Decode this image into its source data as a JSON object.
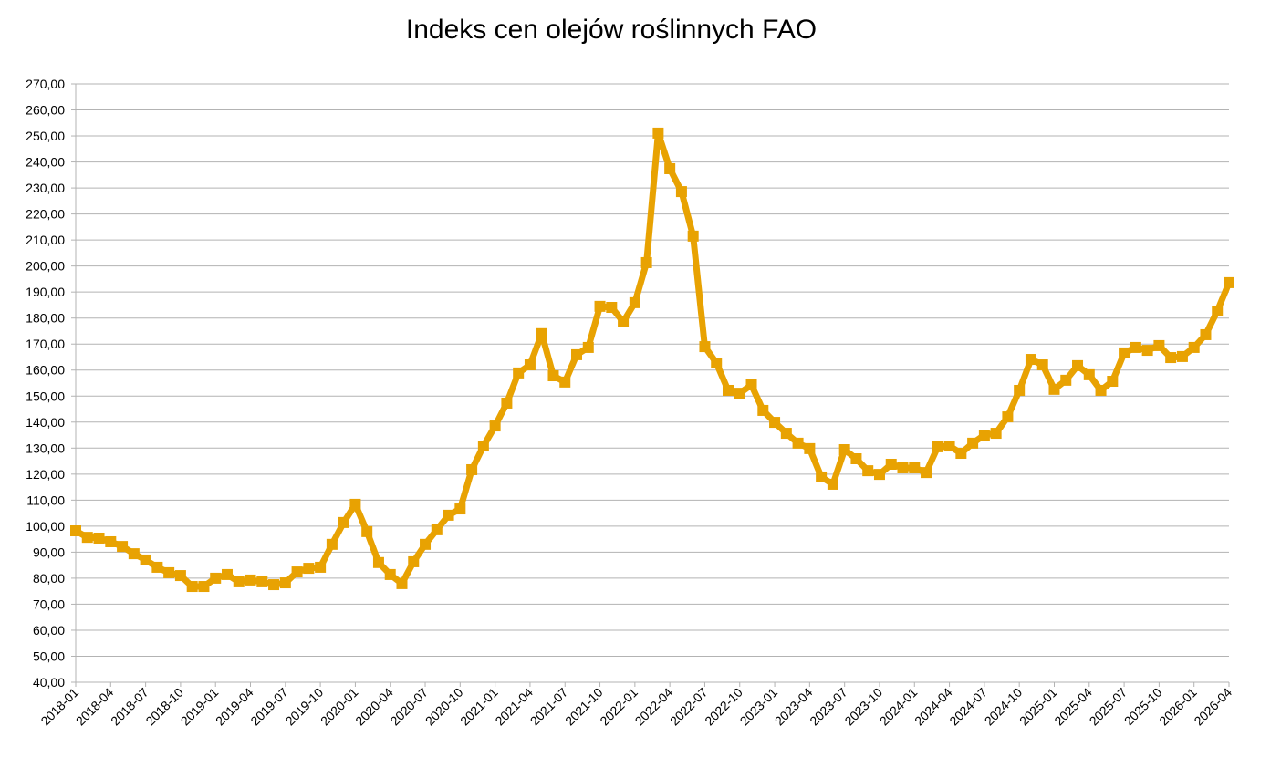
{
  "chart_data": {
    "type": "line",
    "title": "Indeks cen olejów roślinnych FAO",
    "categories": [
      "2018-01",
      null,
      null,
      "2018-04",
      null,
      null,
      "2018-07",
      null,
      null,
      "2018-10",
      null,
      null,
      "2019-01",
      null,
      null,
      "2019-04",
      null,
      null,
      "2019-07",
      null,
      null,
      "2019-10",
      null,
      null,
      "2020-01",
      null,
      null,
      "2020-04",
      null,
      null,
      "2020-07",
      null,
      null,
      "2020-10",
      null,
      null,
      "2021-01",
      null,
      null,
      "2021-04",
      null,
      null,
      "2021-07",
      null,
      null,
      "2021-10",
      null,
      null,
      "2022-01",
      null,
      null,
      "2022-04",
      null,
      null,
      "2022-07",
      null,
      null,
      "2022-10",
      null,
      null,
      "2023-01",
      null,
      null,
      "2023-04",
      null,
      null,
      "2023-07",
      null,
      null,
      "2023-10",
      null,
      null,
      "2024-01",
      null,
      null,
      "2024-04",
      null,
      null,
      "2024-07",
      null,
      null,
      "2024-10",
      null,
      null,
      "2025-01",
      null,
      null,
      "2025-04",
      null,
      null,
      "2025-07",
      null,
      null,
      "2025-10",
      null,
      null,
      "2026-01",
      null,
      null,
      "2026-04"
    ],
    "series": [
      {
        "color": "#e8a202",
        "values": [
          98.2,
          95.7,
          95.4,
          94,
          92.2,
          89.4,
          87,
          84.2,
          82.1,
          81,
          76.8,
          76.8,
          80,
          81.4,
          78.6,
          79.3,
          78.6,
          77.5,
          78.2,
          82.4,
          83.8,
          84.2,
          93,
          101.4,
          108.4,
          97.9,
          86,
          81.4,
          77.9,
          86.3,
          93,
          98.6,
          104.2,
          106.6,
          121.7,
          130.8,
          138.5,
          147.3,
          158.9,
          162,
          174,
          157.8,
          155.4,
          165.9,
          168.7,
          184.5,
          184.1,
          178.5,
          185.9,
          201.3,
          251.1,
          237.4,
          228.6,
          211.5,
          169,
          162.7,
          152.2,
          151.1,
          154.3,
          144.5,
          139.9,
          135.7,
          131.9,
          129.8,
          118.9,
          116.1,
          129.4,
          125.9,
          121.3,
          119.9,
          123.8,
          122.4,
          122.4,
          120.6,
          130.5,
          130.8,
          128,
          131.9,
          135,
          135.7,
          142,
          152.2,
          164.1,
          162,
          152.6,
          156.1,
          161.7,
          158.2,
          152.2,
          155.7,
          166.6,
          168.7,
          167.6,
          169.4,
          164.8,
          165.2,
          168.7,
          173.6,
          182.7,
          193.6
        ]
      }
    ],
    "ylim": [
      40,
      270
    ],
    "yticks": [
      {
        "value": 40,
        "label": "40,00"
      },
      {
        "value": 50,
        "label": "50,00"
      },
      {
        "value": 60,
        "label": "60,00"
      },
      {
        "value": 70,
        "label": "70,00"
      },
      {
        "value": 80,
        "label": "80,00"
      },
      {
        "value": 90,
        "label": "90,00"
      },
      {
        "value": 100,
        "label": "100,00"
      },
      {
        "value": 110,
        "label": "110,00"
      },
      {
        "value": 120,
        "label": "120,00"
      },
      {
        "value": 130,
        "label": "130,00"
      },
      {
        "value": 140,
        "label": "140,00"
      },
      {
        "value": 150,
        "label": "150,00"
      },
      {
        "value": 160,
        "label": "160,00"
      },
      {
        "value": 170,
        "label": "170,00"
      },
      {
        "value": 180,
        "label": "180,00"
      },
      {
        "value": 190,
        "label": "190,00"
      },
      {
        "value": 200,
        "label": "200,00"
      },
      {
        "value": 210,
        "label": "210,00"
      },
      {
        "value": 220,
        "label": "220,00"
      },
      {
        "value": 230,
        "label": "230,00"
      },
      {
        "value": 240,
        "label": "240,00"
      },
      {
        "value": 250,
        "label": "250,00"
      },
      {
        "value": 260,
        "label": "260,00"
      },
      {
        "value": 270,
        "label": "270,00"
      }
    ],
    "grid": true
  }
}
